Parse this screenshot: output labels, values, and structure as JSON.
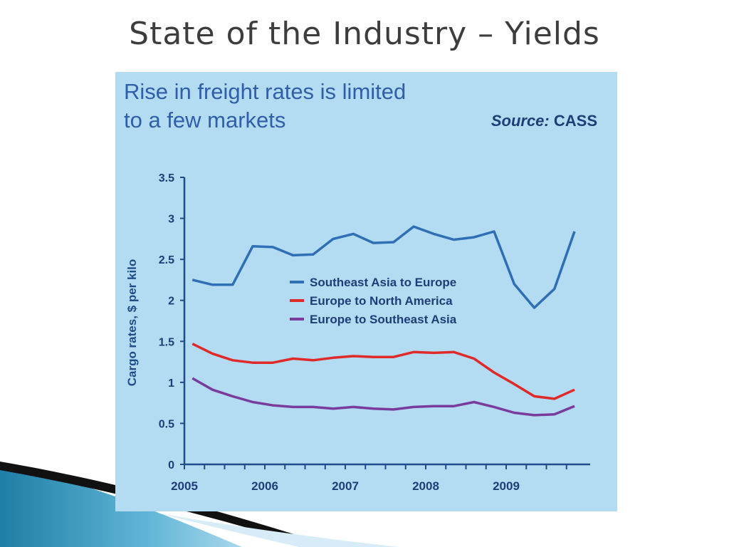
{
  "slide": {
    "title": "State of the Industry – Yields"
  },
  "panel": {
    "heading_line1": "Rise in freight rates is limited",
    "heading_line2": "to a few markets",
    "source_label": "Source:",
    "source_value": "CASS",
    "background_color": "#b3dbf2"
  },
  "chart_data": {
    "type": "line",
    "title": "Rise in freight rates is limited to a few markets",
    "ylabel": "Cargo rates, $ per kilo",
    "xlabel": "",
    "ylim": [
      0,
      3.5
    ],
    "xlim": [
      2005,
      2010
    ],
    "x_ticks": [
      "2005",
      "2006",
      "2007",
      "2008",
      "2009"
    ],
    "y_ticks": [
      "0",
      "0.5",
      "1",
      "1.5",
      "2",
      "2.5",
      "3",
      "3.5"
    ],
    "grid": false,
    "legend_position": "center",
    "x": [
      2005.1,
      2005.35,
      2005.6,
      2005.85,
      2006.1,
      2006.35,
      2006.6,
      2006.85,
      2007.1,
      2007.35,
      2007.6,
      2007.85,
      2008.1,
      2008.35,
      2008.6,
      2008.85,
      2009.1,
      2009.35,
      2009.6,
      2009.85
    ],
    "series": [
      {
        "name": "Southeast Asia to Europe",
        "color": "#2f6fb5",
        "values": [
          2.25,
          2.19,
          2.19,
          2.66,
          2.65,
          2.55,
          2.56,
          2.75,
          2.81,
          2.7,
          2.71,
          2.9,
          2.81,
          2.74,
          2.77,
          2.84,
          2.2,
          1.91,
          2.14,
          2.84
        ]
      },
      {
        "name": "Europe to North America",
        "color": "#e02a2a",
        "values": [
          1.47,
          1.35,
          1.27,
          1.24,
          1.24,
          1.29,
          1.27,
          1.3,
          1.32,
          1.31,
          1.31,
          1.37,
          1.36,
          1.37,
          1.29,
          1.12,
          0.98,
          0.83,
          0.8,
          0.91
        ]
      },
      {
        "name": "Europe to Southeast Asia",
        "color": "#7a3c9c",
        "values": [
          1.05,
          0.91,
          0.83,
          0.76,
          0.72,
          0.7,
          0.7,
          0.68,
          0.7,
          0.68,
          0.67,
          0.7,
          0.71,
          0.71,
          0.76,
          0.7,
          0.63,
          0.6,
          0.61,
          0.71
        ]
      }
    ]
  }
}
